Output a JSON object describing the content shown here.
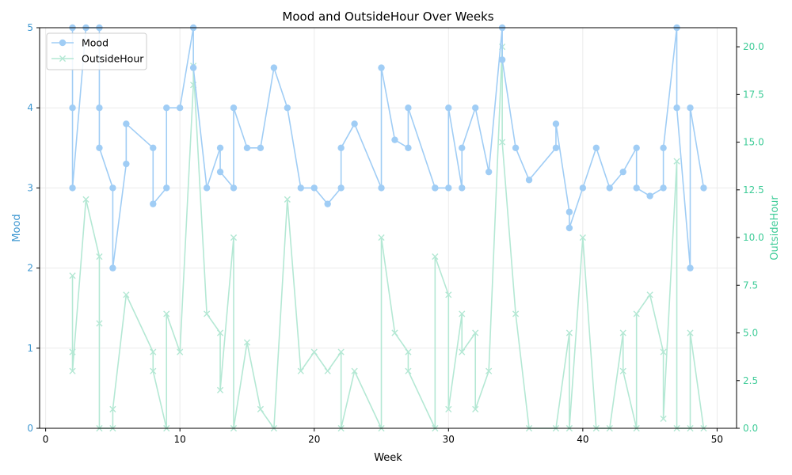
{
  "chart_data": {
    "type": "line",
    "title": "Mood and OutsideHour Over Weeks",
    "xlabel": "Week",
    "ylabel_left": "Mood",
    "ylabel_right": "OutsideHour",
    "xlim": [
      -0.45,
      51.45
    ],
    "ylim_left": [
      0,
      5
    ],
    "ylim_right": [
      0,
      21
    ],
    "x_ticks": [
      0,
      10,
      20,
      30,
      40,
      50
    ],
    "y_left_ticks": [
      0,
      1,
      2,
      3,
      4,
      5
    ],
    "y_right_ticks": [
      0.0,
      2.5,
      5.0,
      7.5,
      10.0,
      12.5,
      15.0,
      17.5,
      20.0
    ],
    "grid": true,
    "legend_position": "upper-left",
    "series": [
      {
        "name": "Mood",
        "axis": "left",
        "color": "#a0cdf5",
        "label_color": "#3e97d1",
        "marker": "circle",
        "points": [
          [
            2,
            5
          ],
          [
            2,
            4
          ],
          [
            2,
            3
          ],
          [
            3,
            5
          ],
          [
            4,
            5
          ],
          [
            4,
            4
          ],
          [
            4,
            3.5
          ],
          [
            5,
            3
          ],
          [
            5,
            2
          ],
          [
            6,
            3.3
          ],
          [
            6,
            3.8
          ],
          [
            8,
            3.5
          ],
          [
            8,
            2.8
          ],
          [
            9,
            3
          ],
          [
            9,
            4
          ],
          [
            10,
            4
          ],
          [
            11,
            5
          ],
          [
            11,
            4.5
          ],
          [
            12,
            3
          ],
          [
            13,
            3.5
          ],
          [
            13,
            3.2
          ],
          [
            14,
            3
          ],
          [
            14,
            4
          ],
          [
            15,
            3.5
          ],
          [
            16,
            3.5
          ],
          [
            17,
            4.5
          ],
          [
            18,
            4
          ],
          [
            19,
            3
          ],
          [
            20,
            3
          ],
          [
            21,
            2.8
          ],
          [
            22,
            3
          ],
          [
            22,
            3.5
          ],
          [
            23,
            3.8
          ],
          [
            25,
            3
          ],
          [
            25,
            4.5
          ],
          [
            26,
            3.6
          ],
          [
            27,
            3.5
          ],
          [
            27,
            4
          ],
          [
            29,
            3
          ],
          [
            29,
            3
          ],
          [
            30,
            3
          ],
          [
            30,
            4
          ],
          [
            31,
            3
          ],
          [
            31,
            3.5
          ],
          [
            32,
            4
          ],
          [
            33,
            3.2
          ],
          [
            34,
            5
          ],
          [
            34,
            4.6
          ],
          [
            35,
            3.5
          ],
          [
            36,
            3.1
          ],
          [
            38,
            3.5
          ],
          [
            38,
            3.8
          ],
          [
            39,
            2.7
          ],
          [
            39,
            2.5
          ],
          [
            40,
            3
          ],
          [
            41,
            3.5
          ],
          [
            42,
            3
          ],
          [
            43,
            3.2
          ],
          [
            44,
            3.5
          ],
          [
            44,
            3
          ],
          [
            45,
            2.9
          ],
          [
            46,
            3
          ],
          [
            46,
            3.5
          ],
          [
            47,
            5
          ],
          [
            47,
            4
          ],
          [
            48,
            2
          ],
          [
            48,
            4
          ],
          [
            49,
            3
          ]
        ]
      },
      {
        "name": "OutsideHour",
        "axis": "right",
        "color": "#b4e8d4",
        "label_color": "#3fcc98",
        "marker": "x",
        "points": [
          [
            2,
            8
          ],
          [
            2,
            4
          ],
          [
            2,
            3
          ],
          [
            3,
            12
          ],
          [
            4,
            9
          ],
          [
            4,
            5.5
          ],
          [
            4,
            0
          ],
          [
            5,
            0
          ],
          [
            5,
            1
          ],
          [
            6,
            7
          ],
          [
            8,
            4
          ],
          [
            8,
            3
          ],
          [
            9,
            0
          ],
          [
            9,
            6
          ],
          [
            10,
            4
          ],
          [
            11,
            18
          ],
          [
            11,
            19
          ],
          [
            12,
            6
          ],
          [
            13,
            5
          ],
          [
            13,
            2
          ],
          [
            14,
            10
          ],
          [
            14,
            0
          ],
          [
            15,
            4.5
          ],
          [
            16,
            1
          ],
          [
            17,
            0
          ],
          [
            18,
            12
          ],
          [
            19,
            3
          ],
          [
            20,
            4
          ],
          [
            21,
            3
          ],
          [
            22,
            4
          ],
          [
            22,
            0
          ],
          [
            23,
            3
          ],
          [
            25,
            0
          ],
          [
            25,
            10
          ],
          [
            26,
            5
          ],
          [
            27,
            4
          ],
          [
            27,
            3
          ],
          [
            29,
            0
          ],
          [
            29,
            9
          ],
          [
            30,
            7
          ],
          [
            30,
            1
          ],
          [
            31,
            6
          ],
          [
            31,
            4
          ],
          [
            32,
            5
          ],
          [
            32,
            1
          ],
          [
            33,
            3
          ],
          [
            34,
            20
          ],
          [
            34,
            15
          ],
          [
            35,
            6
          ],
          [
            36,
            0
          ],
          [
            38,
            0
          ],
          [
            39,
            5
          ],
          [
            39,
            0
          ],
          [
            40,
            10
          ],
          [
            41,
            0
          ],
          [
            42,
            0
          ],
          [
            43,
            5
          ],
          [
            43,
            3
          ],
          [
            44,
            0
          ],
          [
            44,
            6
          ],
          [
            45,
            7
          ],
          [
            46,
            4
          ],
          [
            46,
            0.5
          ],
          [
            47,
            14
          ],
          [
            47,
            0
          ],
          [
            48,
            0
          ],
          [
            48,
            5
          ],
          [
            49,
            0
          ]
        ]
      }
    ]
  }
}
